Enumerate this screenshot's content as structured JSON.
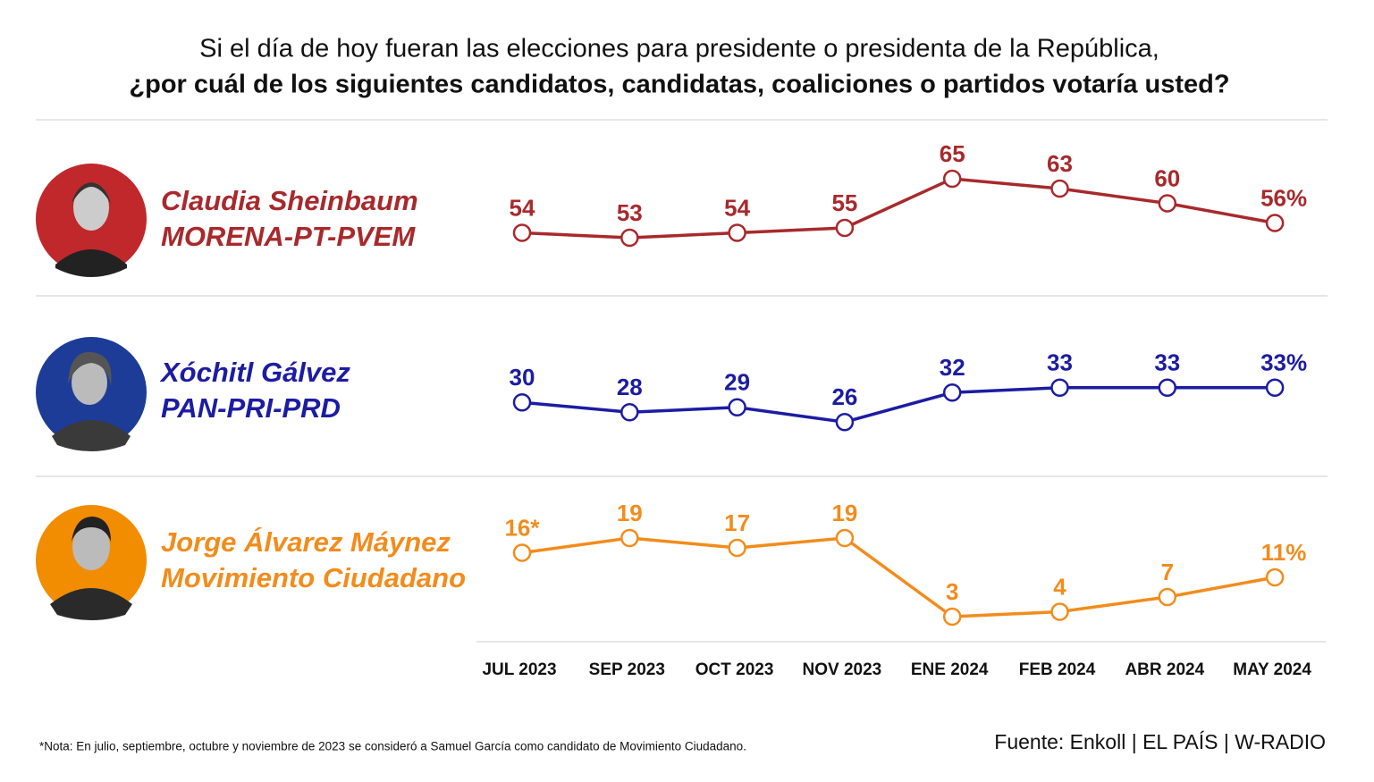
{
  "chart_data": {
    "type": "line",
    "title": "Si el día de hoy fueran las elecciones para presidente o presidenta de la República,",
    "subtitle": "¿por cuál de los siguientes candidatos, candidatas, coaliciones o partidos votaría usted?",
    "categories": [
      "JUL 2023",
      "SEP 2023",
      "OCT 2023",
      "NOV 2023",
      "ENE 2024",
      "FEB 2024",
      "ABR 2024",
      "MAY 2024"
    ],
    "series": [
      {
        "name": "Claudia Sheinbaum",
        "party": "MORENA-PT-PVEM",
        "color": "#a8292c",
        "values": [
          54,
          53,
          54,
          55,
          65,
          63,
          60,
          56
        ],
        "value_labels": [
          "54",
          "53",
          "54",
          "55",
          "65",
          "63",
          "60",
          "56%"
        ]
      },
      {
        "name": "Xóchitl Gálvez",
        "party": "PAN-PRI-PRD",
        "color": "#1c1ca3",
        "values": [
          30,
          28,
          29,
          26,
          32,
          33,
          33,
          33
        ],
        "value_labels": [
          "30",
          "28",
          "29",
          "26",
          "32",
          "33",
          "33",
          "33%"
        ]
      },
      {
        "name": "Jorge Álvarez Máynez",
        "party": "Movimiento Ciudadano",
        "color": "#f28c1c",
        "values": [
          16,
          19,
          17,
          19,
          3,
          4,
          7,
          11
        ],
        "value_labels": [
          "16*",
          "19",
          "17",
          "19",
          "3",
          "4",
          "7",
          "11%"
        ]
      }
    ],
    "note": "*Nota: En julio, septiembre, octubre y noviembre de 2023 se consideró a Samuel García como candidato de Movimiento Ciudadano.",
    "source": "Fuente: Enkoll | EL PAÍS | W-RADIO"
  }
}
